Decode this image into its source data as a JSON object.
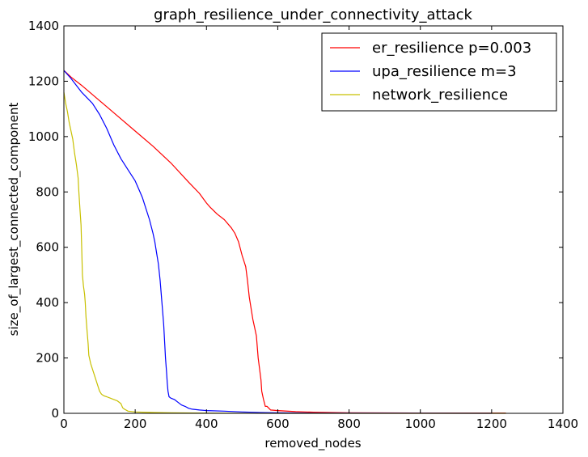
{
  "chart_data": {
    "type": "line",
    "title": "graph_resilience_under_connectivity_attack",
    "xlabel": "removed_nodes",
    "ylabel": "size_of_largest_connected_component",
    "xlim": [
      0,
      1400
    ],
    "ylim": [
      0,
      1400
    ],
    "xticks": [
      0,
      200,
      400,
      600,
      800,
      1000,
      1200,
      1400
    ],
    "yticks": [
      0,
      200,
      400,
      600,
      800,
      1000,
      1200,
      1400
    ],
    "grid": false,
    "legend_position": "top-right",
    "series": [
      {
        "name": "er_resilience p=0.003",
        "color": "#ff0000",
        "x": [
          0,
          20,
          50,
          100,
          150,
          200,
          250,
          300,
          350,
          380,
          400,
          410,
          430,
          450,
          470,
          480,
          490,
          500,
          510,
          515,
          520,
          525,
          530,
          535,
          540,
          545,
          550,
          553,
          555,
          560,
          565,
          568,
          570,
          580,
          600,
          650,
          700,
          750,
          800,
          1000,
          1240
        ],
        "y": [
          1239,
          1215,
          1185,
          1130,
          1075,
          1020,
          965,
          905,
          835,
          795,
          760,
          745,
          720,
          700,
          670,
          650,
          620,
          570,
          530,
          480,
          420,
          380,
          340,
          310,
          280,
          200,
          150,
          120,
          80,
          50,
          25,
          25,
          25,
          12,
          10,
          6,
          4,
          3,
          2,
          1,
          1
        ]
      },
      {
        "name": "upa_resilience m=3",
        "color": "#0000ff",
        "x": [
          0,
          20,
          50,
          80,
          100,
          120,
          140,
          160,
          180,
          200,
          210,
          220,
          230,
          240,
          250,
          255,
          260,
          265,
          270,
          275,
          280,
          283,
          285,
          288,
          290,
          292,
          295,
          300,
          310,
          320,
          330,
          340,
          350,
          360,
          380,
          400,
          450,
          500,
          550,
          600,
          700,
          1200
        ],
        "y": [
          1239,
          1210,
          1160,
          1120,
          1080,
          1030,
          970,
          920,
          880,
          840,
          810,
          780,
          740,
          700,
          650,
          620,
          580,
          540,
          480,
          400,
          320,
          250,
          200,
          150,
          110,
          80,
          60,
          55,
          50,
          40,
          30,
          25,
          18,
          15,
          12,
          10,
          8,
          5,
          3,
          2,
          1,
          0
        ]
      },
      {
        "name": "network_resilience",
        "color": "#c8c000",
        "x": [
          0,
          5,
          10,
          15,
          20,
          25,
          30,
          35,
          40,
          42,
          45,
          48,
          50,
          52,
          55,
          58,
          60,
          62,
          65,
          68,
          70,
          75,
          80,
          85,
          90,
          95,
          100,
          105,
          110,
          115,
          120,
          130,
          140,
          150,
          160,
          165,
          170,
          180,
          200,
          250,
          300,
          400,
          600,
          1240
        ],
        "y": [
          1160,
          1120,
          1090,
          1050,
          1020,
          990,
          940,
          900,
          850,
          800,
          740,
          680,
          600,
          500,
          460,
          430,
          400,
          350,
          300,
          250,
          210,
          180,
          160,
          140,
          120,
          100,
          80,
          70,
          65,
          62,
          60,
          55,
          50,
          45,
          35,
          20,
          15,
          8,
          5,
          3,
          2,
          1,
          0,
          0
        ]
      }
    ]
  }
}
